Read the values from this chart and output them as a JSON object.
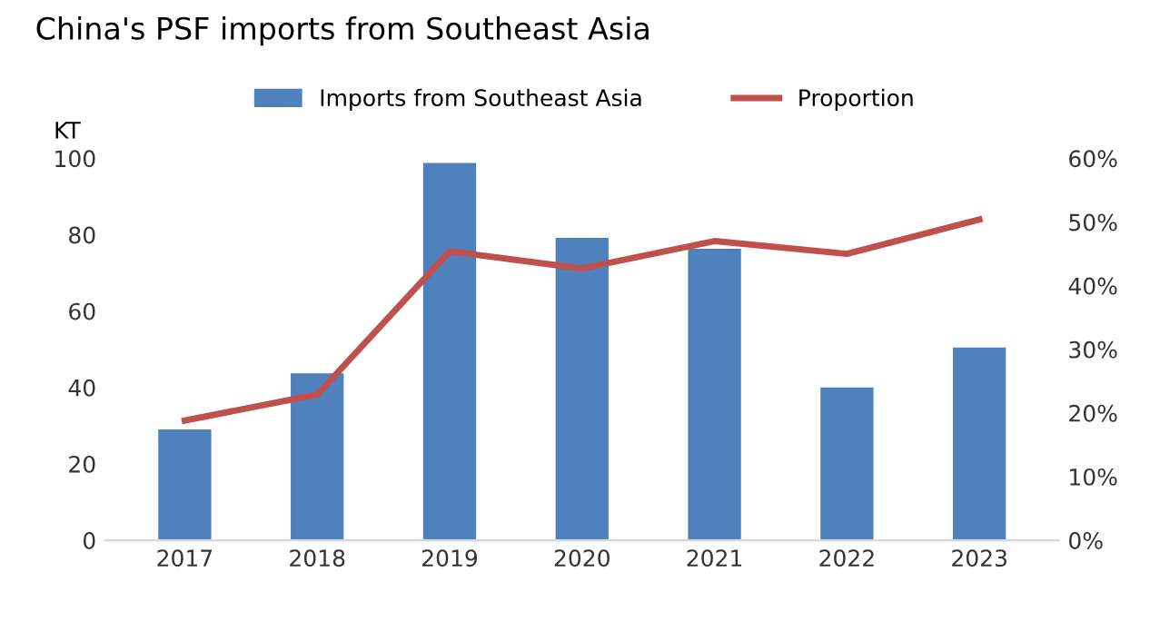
{
  "chart_data": {
    "type": "bar",
    "title": "China's PSF imports from Southeast Asia",
    "ylabel": "KT",
    "categories": [
      "2017",
      "2018",
      "2019",
      "2020",
      "2021",
      "2022",
      "2023"
    ],
    "series": [
      {
        "name": "Imports from Southeast Asia",
        "color": "#4f81bd",
        "values": [
          29,
          43.7,
          98.8,
          79.2,
          76.3,
          40,
          50.5
        ]
      },
      {
        "name": "Proportion",
        "type": "line",
        "axis": "y2",
        "color": "#c0504d",
        "marker": "none",
        "values": [
          18.8,
          22.9,
          45.4,
          42.7,
          47,
          45,
          50.4
        ]
      }
    ],
    "ylim": [
      0,
      100
    ],
    "yticks": [
      0,
      20,
      40,
      60,
      80,
      100
    ],
    "y2lim": [
      0,
      60
    ],
    "y2ticks": [
      {
        "value": 0,
        "label": "0%"
      },
      {
        "value": 10,
        "label": "10%"
      },
      {
        "value": 20,
        "label": "20%"
      },
      {
        "value": 30,
        "label": "30%"
      },
      {
        "value": 40,
        "label": "40%"
      },
      {
        "value": 50,
        "label": "50%"
      },
      {
        "value": 60,
        "label": "60%"
      }
    ],
    "grid": false,
    "legend": "top"
  }
}
